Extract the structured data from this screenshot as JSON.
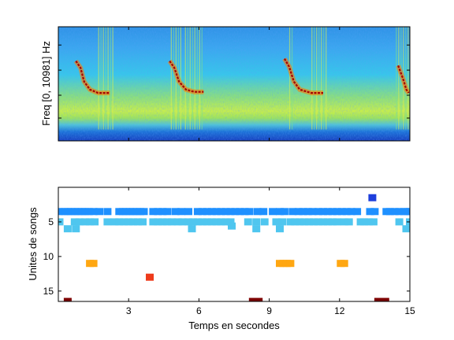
{
  "chart_data": [
    {
      "type": "heatmap",
      "ylabel": "Freq [0, 10981] Hz",
      "xlabel": "",
      "xlim": [
        0,
        15
      ],
      "ylim": [
        0,
        10981
      ],
      "colormap": "jet",
      "bright_bands_x": [
        [
          1.7,
          2.4
        ],
        [
          4.8,
          5.3
        ],
        [
          5.4,
          6.2
        ],
        [
          9.85,
          10.05
        ],
        [
          10.8,
          11.5
        ],
        [
          14.4,
          15.0
        ]
      ],
      "ridge_traces": [
        [
          [
            0.75,
            0.7
          ],
          [
            0.95,
            0.64
          ],
          [
            1.1,
            0.52
          ],
          [
            1.35,
            0.45
          ],
          [
            1.7,
            0.42
          ],
          [
            2.2,
            0.42
          ]
        ],
        [
          [
            4.75,
            0.7
          ],
          [
            4.95,
            0.64
          ],
          [
            5.15,
            0.52
          ],
          [
            5.45,
            0.45
          ],
          [
            5.8,
            0.43
          ],
          [
            6.2,
            0.43
          ]
        ],
        [
          [
            9.65,
            0.72
          ],
          [
            9.85,
            0.65
          ],
          [
            10.05,
            0.52
          ],
          [
            10.3,
            0.45
          ],
          [
            10.8,
            0.42
          ],
          [
            11.3,
            0.42
          ]
        ],
        [
          [
            14.5,
            0.66
          ],
          [
            14.7,
            0.55
          ],
          [
            14.85,
            0.45
          ],
          [
            14.95,
            0.42
          ]
        ]
      ]
    },
    {
      "type": "scatter",
      "marker": "square",
      "xlabel": "Temps en secondes",
      "ylabel": "Unites de songs",
      "xlim": [
        0,
        15
      ],
      "ylim": [
        16.5,
        0
      ],
      "xticks": [
        3,
        6,
        9,
        12,
        15
      ],
      "yticks": [
        5,
        10,
        15
      ],
      "series": [
        {
          "color": "#1e90ff",
          "points": [
            [
              0.05,
              3.5
            ],
            [
              0.25,
              3.5
            ],
            [
              0.4,
              3.5
            ],
            [
              0.55,
              3.5
            ],
            [
              0.7,
              3.5
            ],
            [
              0.85,
              3.5
            ],
            [
              1.0,
              3.5
            ],
            [
              1.15,
              3.5
            ],
            [
              1.3,
              3.5
            ],
            [
              1.5,
              3.5
            ],
            [
              1.75,
              3.5
            ],
            [
              2.1,
              3.5
            ],
            [
              2.6,
              3.5
            ],
            [
              2.75,
              3.5
            ],
            [
              2.9,
              3.5
            ],
            [
              3.05,
              3.5
            ],
            [
              3.2,
              3.5
            ],
            [
              3.35,
              3.5
            ],
            [
              3.5,
              3.5
            ],
            [
              3.65,
              3.5
            ],
            [
              4.05,
              3.5
            ],
            [
              4.25,
              3.5
            ],
            [
              4.45,
              3.5
            ],
            [
              4.65,
              3.5
            ],
            [
              5.0,
              3.5
            ],
            [
              5.25,
              3.5
            ],
            [
              5.55,
              3.5
            ],
            [
              5.95,
              3.5
            ],
            [
              6.15,
              3.5
            ],
            [
              6.35,
              3.5
            ],
            [
              6.55,
              3.5
            ],
            [
              6.75,
              3.5
            ],
            [
              6.95,
              3.5
            ],
            [
              7.15,
              3.5
            ],
            [
              7.35,
              3.5
            ],
            [
              7.55,
              3.5
            ],
            [
              7.75,
              3.5
            ],
            [
              7.95,
              3.5
            ],
            [
              8.15,
              3.5
            ],
            [
              8.5,
              3.5
            ],
            [
              8.75,
              3.5
            ],
            [
              9.15,
              3.5
            ],
            [
              9.45,
              3.5
            ],
            [
              9.65,
              3.5
            ],
            [
              10.0,
              3.5
            ],
            [
              10.25,
              3.5
            ],
            [
              10.45,
              3.5
            ],
            [
              10.65,
              3.5
            ],
            [
              10.85,
              3.5
            ],
            [
              11.1,
              3.5
            ],
            [
              11.3,
              3.5
            ],
            [
              11.5,
              3.5
            ],
            [
              11.7,
              3.5
            ],
            [
              11.9,
              3.5
            ],
            [
              12.1,
              3.5
            ],
            [
              12.3,
              3.5
            ],
            [
              12.5,
              3.5
            ],
            [
              12.75,
              3.5
            ],
            [
              13.3,
              3.5
            ],
            [
              13.5,
              3.5
            ],
            [
              14.0,
              3.5
            ],
            [
              14.15,
              3.5
            ],
            [
              14.35,
              3.5
            ],
            [
              14.55,
              3.5
            ],
            [
              14.75,
              3.5
            ],
            [
              14.9,
              3.5
            ],
            [
              15.0,
              3.5
            ]
          ]
        },
        {
          "color": "#4fc6ef",
          "points": [
            [
              0.05,
              5
            ],
            [
              0.7,
              5
            ],
            [
              0.9,
              5
            ],
            [
              1.15,
              5
            ],
            [
              1.35,
              5
            ],
            [
              1.55,
              5
            ],
            [
              2.1,
              5
            ],
            [
              2.4,
              5
            ],
            [
              2.6,
              5
            ],
            [
              2.8,
              5
            ],
            [
              3.0,
              5
            ],
            [
              3.2,
              5
            ],
            [
              3.4,
              5
            ],
            [
              3.6,
              5
            ],
            [
              4.05,
              5
            ],
            [
              4.25,
              5
            ],
            [
              4.45,
              5
            ],
            [
              4.65,
              5
            ],
            [
              4.85,
              5
            ],
            [
              5.1,
              5
            ],
            [
              5.3,
              5
            ],
            [
              5.55,
              5
            ],
            [
              5.75,
              5
            ],
            [
              5.95,
              5
            ],
            [
              6.15,
              5
            ],
            [
              6.35,
              5
            ],
            [
              6.55,
              5
            ],
            [
              6.75,
              5
            ],
            [
              6.95,
              5
            ],
            [
              7.15,
              5
            ],
            [
              7.35,
              5
            ],
            [
              8.1,
              5
            ],
            [
              8.45,
              5
            ],
            [
              8.8,
              5
            ],
            [
              9.3,
              5
            ],
            [
              9.55,
              5
            ],
            [
              9.9,
              5
            ],
            [
              10.1,
              5
            ],
            [
              10.3,
              5
            ],
            [
              10.5,
              5
            ],
            [
              10.7,
              5
            ],
            [
              10.9,
              5
            ],
            [
              11.1,
              5
            ],
            [
              11.3,
              5
            ],
            [
              11.5,
              5
            ],
            [
              11.7,
              5
            ],
            [
              11.9,
              5
            ],
            [
              12.2,
              5
            ],
            [
              12.4,
              5
            ],
            [
              12.9,
              5
            ],
            [
              13.05,
              5
            ],
            [
              13.25,
              5
            ],
            [
              13.45,
              5
            ],
            [
              14.55,
              5
            ],
            [
              15.0,
              5
            ],
            [
              0.4,
              6
            ],
            [
              0.75,
              6
            ],
            [
              5.7,
              6
            ],
            [
              8.45,
              6
            ],
            [
              9.45,
              6
            ],
            [
              14.85,
              6
            ],
            [
              7.4,
              5.6
            ]
          ]
        },
        {
          "color": "#1e3fdc",
          "points": [
            [
              13.4,
              1.5
            ]
          ]
        },
        {
          "color": "#ffa712",
          "points": [
            [
              1.35,
              11
            ],
            [
              1.5,
              11
            ],
            [
              9.45,
              11
            ],
            [
              9.6,
              11
            ],
            [
              9.75,
              11
            ],
            [
              9.9,
              11
            ],
            [
              12.05,
              11
            ],
            [
              12.2,
              11
            ]
          ]
        },
        {
          "color": "#ee3b1b",
          "points": [
            [
              3.9,
              13
            ]
          ]
        },
        {
          "color": "#7d0000",
          "points": [
            [
              0.4,
              16.5
            ],
            [
              8.3,
              16.5
            ],
            [
              8.55,
              16.5
            ],
            [
              13.65,
              16.5
            ],
            [
              13.8,
              16.5
            ],
            [
              13.95,
              16.5
            ]
          ]
        }
      ]
    }
  ]
}
